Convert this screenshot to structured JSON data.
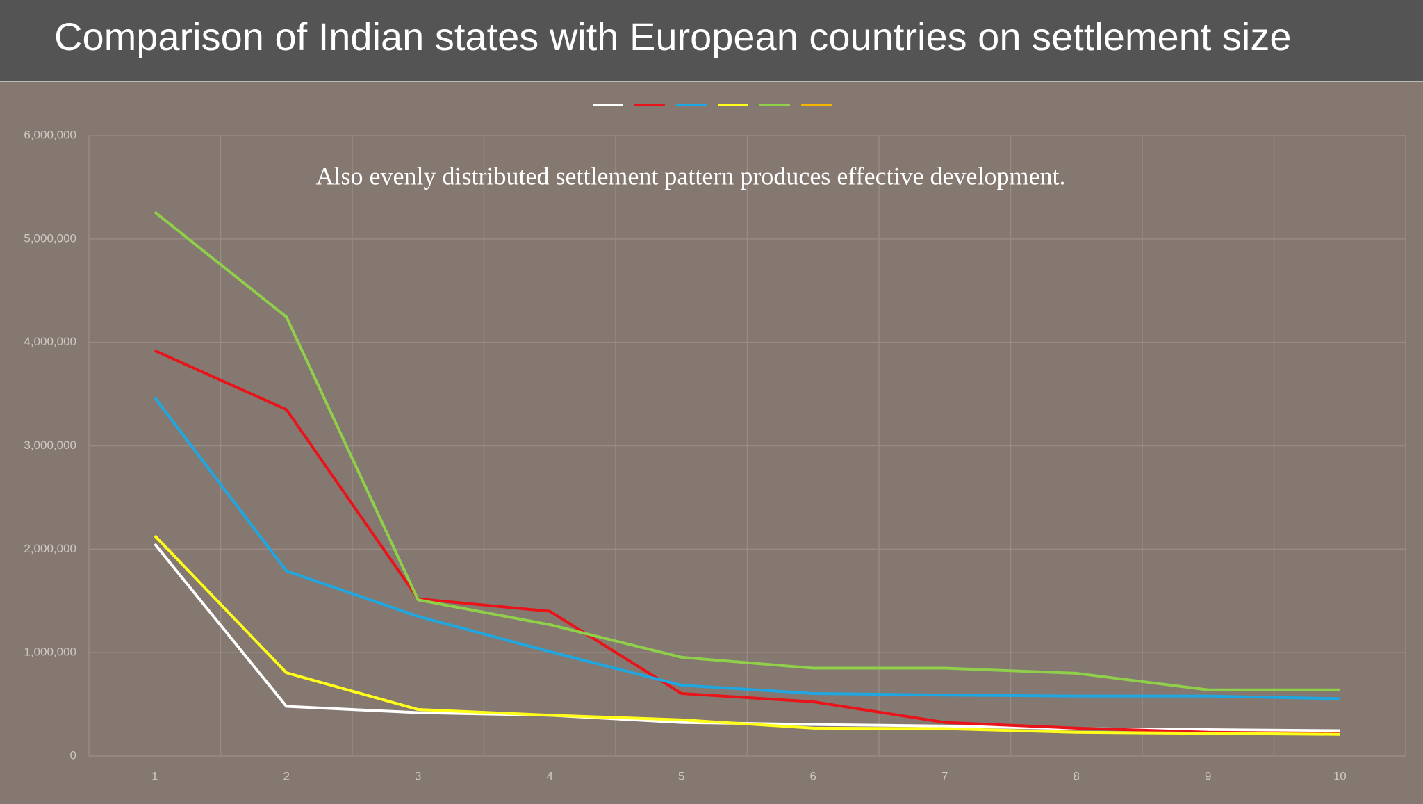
{
  "chart_data": {
    "type": "line",
    "title": "Comparison of Indian states with European countries on settlement size",
    "annotation": "Also evenly distributed settlement pattern produces effective development.",
    "categories": [
      "1",
      "2",
      "3",
      "4",
      "5",
      "6",
      "7",
      "8",
      "9",
      "10"
    ],
    "series": [
      {
        "color": "#ffffff",
        "values": [
          2050000,
          480000,
          420000,
          395000,
          325000,
          305000,
          290000,
          265000,
          255000,
          245000
        ]
      },
      {
        "color": "#e8141a",
        "values": [
          3920000,
          3350000,
          1520000,
          1400000,
          605000,
          525000,
          325000,
          270000,
          230000,
          220000
        ]
      },
      {
        "color": "#1ea7e0",
        "values": [
          3465000,
          1790000,
          1350000,
          1010000,
          685000,
          605000,
          590000,
          580000,
          580000,
          555000
        ]
      },
      {
        "color": "#ffff1a",
        "values": [
          2130000,
          805000,
          450000,
          395000,
          350000,
          270000,
          265000,
          230000,
          220000,
          210000
        ]
      },
      {
        "color": "#8fcf4a",
        "values": [
          5260000,
          4245000,
          1510000,
          1270000,
          955000,
          850000,
          850000,
          800000,
          640000,
          640000
        ]
      },
      {
        "color": "#f5b400",
        "values": [
          null,
          null,
          null,
          null,
          null,
          null,
          null,
          null,
          null,
          null
        ]
      }
    ],
    "ylim": [
      0,
      6000000
    ],
    "yticks": [
      {
        "value": 0,
        "label": "0"
      },
      {
        "value": 1000000,
        "label": "1,000,000"
      },
      {
        "value": 2000000,
        "label": "2,000,000"
      },
      {
        "value": 3000000,
        "label": "3,000,000"
      },
      {
        "value": 4000000,
        "label": "4,000,000"
      },
      {
        "value": 5000000,
        "label": "5,000,000"
      },
      {
        "value": 6000000,
        "label": "6,000,000"
      }
    ],
    "grid": true
  }
}
